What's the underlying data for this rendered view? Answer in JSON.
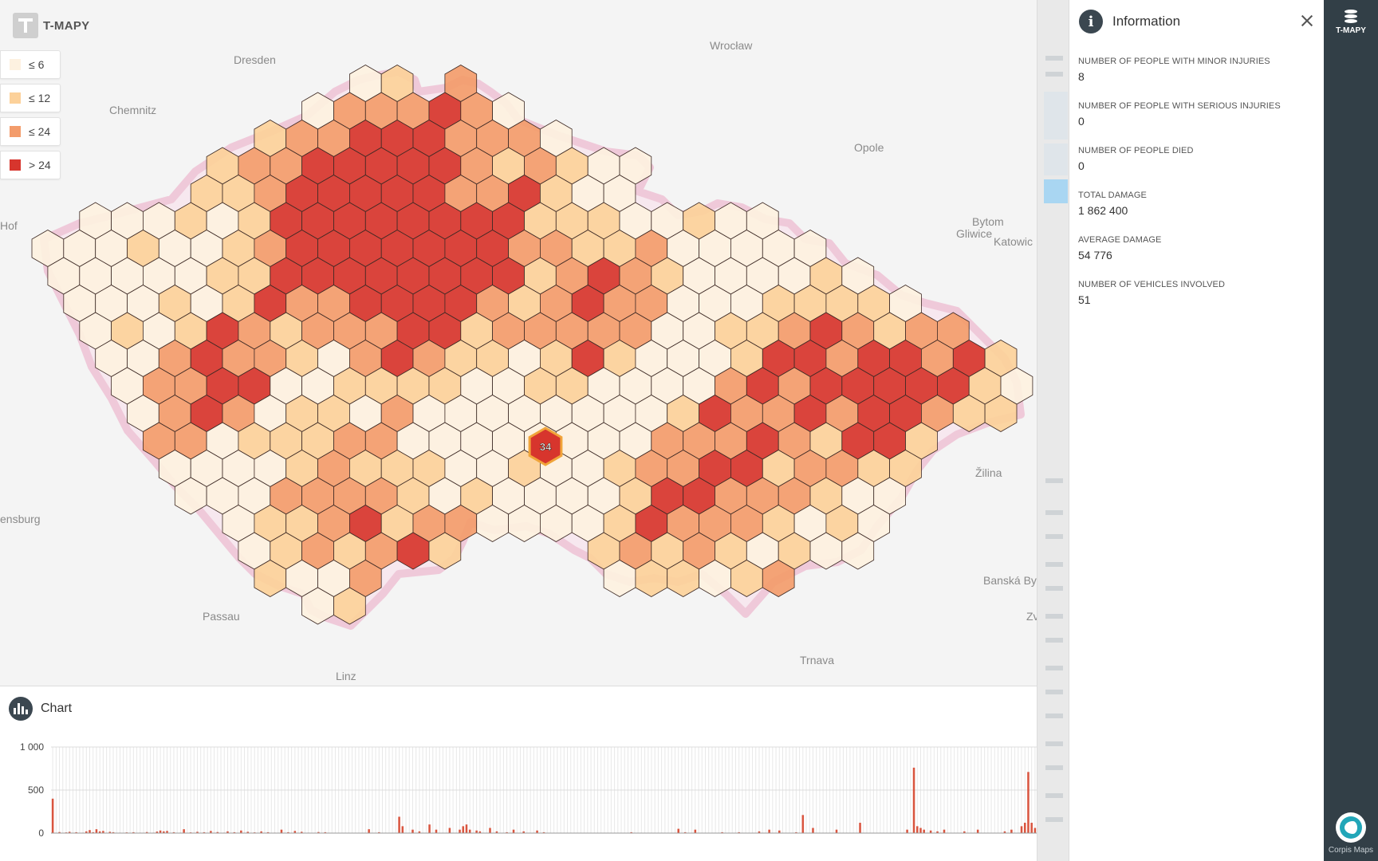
{
  "app": {
    "brand": "T-MAPY"
  },
  "legend": [
    {
      "label": "≤ 6",
      "color": "#fdf1e0"
    },
    {
      "label": "≤ 12",
      "color": "#fcd19a"
    },
    {
      "label": "≤ 24",
      "color": "#f39c6b"
    },
    {
      "label": "> 24",
      "color": "#d7352d"
    }
  ],
  "map": {
    "cities": [
      "Dresden",
      "Wrocław",
      "Chemnitz",
      "Opole",
      "Bytom",
      "Gliwice",
      "Katowic",
      "Hof",
      "Žilina",
      "ensburg",
      "Passau",
      "Linz",
      "Trnava",
      "Banská By",
      "Zv"
    ],
    "selected_hex_value": "34"
  },
  "info": {
    "title": "Information",
    "rows": [
      {
        "label": "NUMBER OF PEOPLE WITH MINOR INJURIES",
        "value": "8"
      },
      {
        "label": "NUMBER OF PEOPLE WITH SERIOUS INJURIES",
        "value": "0"
      },
      {
        "label": "NUMBER OF PEOPLE DIED",
        "value": "0"
      },
      {
        "label": "TOTAL DAMAGE",
        "value": "1 862 400"
      },
      {
        "label": "AVERAGE DAMAGE",
        "value": "54 776"
      },
      {
        "label": "NUMBER OF VEHICLES INVOLVED",
        "value": "51"
      }
    ]
  },
  "chart_panel": {
    "title": "Chart",
    "chart_data": {
      "type": "bar",
      "ylim": [
        0,
        1000
      ],
      "yticks": [
        "1 000",
        "500",
        "0"
      ],
      "ytick_values": [
        1000,
        500,
        0
      ],
      "bar_color": "#d9553f",
      "values": [
        400,
        0,
        12,
        0,
        8,
        15,
        0,
        10,
        0,
        5,
        20,
        35,
        10,
        45,
        20,
        25,
        0,
        15,
        10,
        0,
        5,
        0,
        8,
        0,
        10,
        0,
        5,
        0,
        12,
        0,
        5,
        18,
        30,
        20,
        25,
        0,
        10,
        0,
        5,
        45,
        0,
        8,
        0,
        15,
        0,
        10,
        0,
        25,
        0,
        12,
        0,
        5,
        20,
        0,
        10,
        0,
        30,
        0,
        15,
        0,
        8,
        0,
        20,
        0,
        10,
        0,
        5,
        0,
        40,
        0,
        10,
        0,
        25,
        0,
        15,
        0,
        5,
        0,
        0,
        12,
        0,
        10,
        0,
        0,
        0,
        0,
        0,
        0,
        0,
        0,
        0,
        0,
        0,
        0,
        45,
        0,
        0,
        10,
        0,
        0,
        0,
        0,
        0,
        190,
        80,
        0,
        0,
        40,
        0,
        20,
        0,
        0,
        100,
        0,
        40,
        0,
        0,
        0,
        60,
        0,
        0,
        40,
        80,
        100,
        40,
        0,
        30,
        20,
        0,
        0,
        60,
        0,
        20,
        0,
        0,
        10,
        0,
        40,
        0,
        0,
        20,
        0,
        0,
        0,
        30,
        0,
        10,
        0,
        0,
        0,
        0,
        0,
        0,
        0,
        0,
        0,
        0,
        0,
        0,
        0,
        0,
        0,
        0,
        0,
        0,
        0,
        0,
        0,
        0,
        0,
        0,
        0,
        10,
        0,
        0,
        0,
        0,
        0,
        0,
        0,
        0,
        0,
        0,
        0,
        0,
        0,
        50,
        0,
        10,
        0,
        0,
        40,
        0,
        0,
        0,
        0,
        0,
        0,
        0,
        10,
        0,
        0,
        0,
        0,
        10,
        0,
        0,
        0,
        0,
        0,
        20,
        0,
        0,
        40,
        0,
        0,
        30,
        0,
        0,
        0,
        0,
        10,
        0,
        210,
        0,
        0,
        60,
        0,
        0,
        0,
        0,
        0,
        0,
        40,
        0,
        0,
        0,
        0,
        0,
        0,
        120,
        0,
        0,
        0,
        0,
        0,
        0,
        0,
        0,
        0,
        0,
        0,
        0,
        0,
        40,
        0,
        760,
        80,
        60,
        40,
        0,
        30,
        0,
        20,
        0,
        40,
        0,
        0,
        0,
        0,
        0,
        20,
        0,
        0,
        0,
        40,
        0,
        0,
        0,
        0,
        0,
        0,
        0,
        20,
        0,
        40,
        0,
        0,
        80,
        120,
        710,
        120,
        60
      ]
    }
  }
}
